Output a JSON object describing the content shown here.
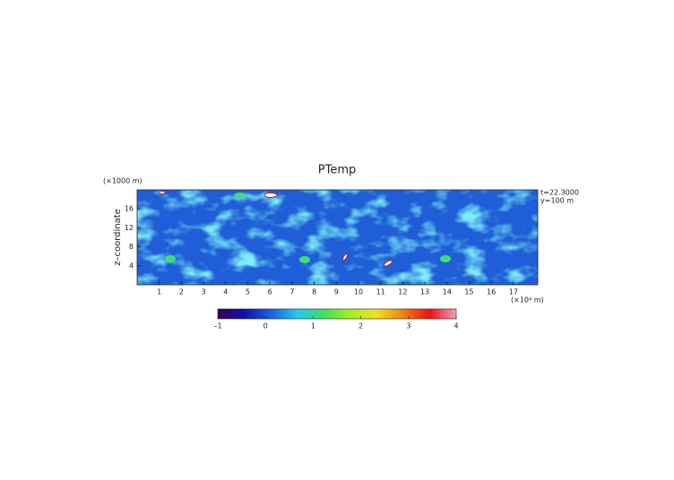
{
  "chart_data": {
    "type": "field",
    "title": "PTemp",
    "y_label": "z–coordinate",
    "x_unit": "(×10⁴ m)",
    "y_unit": "(×1000 m)",
    "annotations": [
      "t=22.3000",
      "y=100 m"
    ],
    "xlim": [
      0,
      18.1
    ],
    "xticks": [
      1,
      2,
      3,
      4,
      5,
      6,
      7,
      8,
      9,
      10,
      11,
      12,
      13,
      14,
      15,
      16,
      17
    ],
    "ylim": [
      0,
      20
    ],
    "yticks": [
      4,
      8,
      12,
      16
    ],
    "clim": [
      -1,
      4
    ],
    "cticks": [
      {
        "value": -1,
        "label": "–1"
      },
      0,
      1,
      2,
      3,
      4
    ],
    "colormap": [
      "#3a0050",
      "#1010b0",
      "#1a60e0",
      "#20c8f0",
      "#40e060",
      "#a0f020",
      "#f0e020",
      "#f08010",
      "#f01010",
      "#f0a0c0"
    ]
  }
}
